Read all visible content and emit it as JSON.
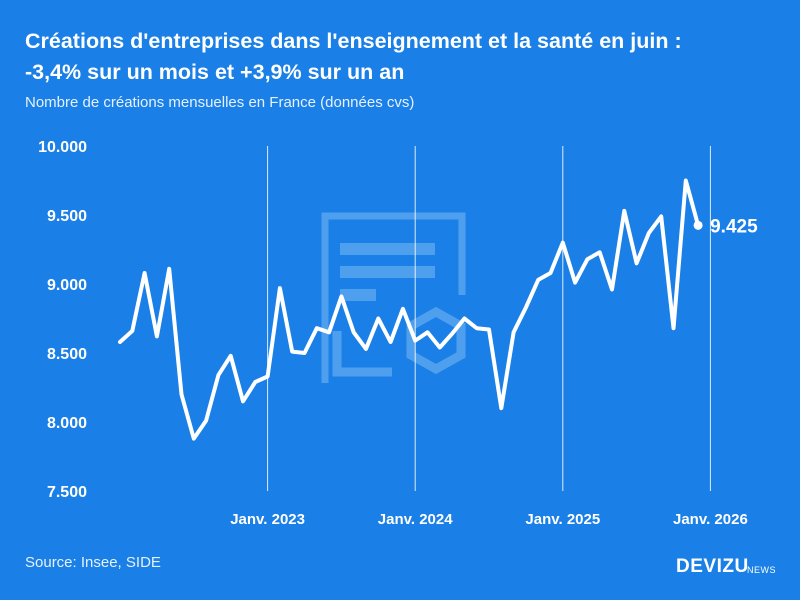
{
  "header": {
    "title_line1": "Créations d'entreprises dans l'enseignement et la santé en juin :",
    "title_line2": "-3,4% sur un mois et +3,9% sur un an",
    "subtitle": "Nombre de créations mensuelles en France (données cvs)"
  },
  "footer": {
    "source": "Source: Insee, SIDE",
    "brand": "DEVIZU",
    "brand_sub": "NEWS"
  },
  "colors": {
    "background": "#1a7fe6",
    "line": "#ffffff",
    "watermark": "#4ea0ee"
  },
  "chart_data": {
    "type": "line",
    "title": "Créations d'entreprises dans l'enseignement et la santé en juin : -3,4% sur un mois et +3,9% sur un an",
    "subtitle": "Nombre de créations mensuelles en France (données cvs)",
    "ylim": [
      7500,
      10000
    ],
    "yticks": [
      7500,
      8000,
      8500,
      9000,
      9500,
      10000
    ],
    "ytick_labels": [
      "7.500",
      "8.000",
      "8.500",
      "9.000",
      "9.500",
      "10.000"
    ],
    "xticks": [
      {
        "date": "2023-01",
        "label": "Janv. 2023"
      },
      {
        "date": "2024-01",
        "label": "Janv. 2024"
      },
      {
        "date": "2025-01",
        "label": "Janv. 2025"
      },
      {
        "date": "2026-01",
        "label": "Janv. 2026"
      }
    ],
    "grid": "vertical-at-january",
    "last_value_label": "9.425",
    "x": [
      "2022-01",
      "2022-02",
      "2022-03",
      "2022-04",
      "2022-05",
      "2022-06",
      "2022-07",
      "2022-08",
      "2022-09",
      "2022-10",
      "2022-11",
      "2022-12",
      "2023-01",
      "2023-02",
      "2023-03",
      "2023-04",
      "2023-05",
      "2023-06",
      "2023-07",
      "2023-08",
      "2023-09",
      "2023-10",
      "2023-11",
      "2023-12",
      "2024-01",
      "2024-02",
      "2024-03",
      "2024-04",
      "2024-05",
      "2024-06",
      "2024-07",
      "2024-08",
      "2024-09",
      "2024-10",
      "2024-11",
      "2024-12",
      "2025-01",
      "2025-02",
      "2025-03",
      "2025-04",
      "2025-05",
      "2025-06",
      "2025-07",
      "2025-08",
      "2025-09",
      "2025-10",
      "2025-11",
      "2025-12",
      "2026-01",
      "2026-02",
      "2026-03",
      "2026-04",
      "2026-05",
      "2026-06"
    ],
    "values": [
      8580,
      8660,
      9080,
      8620,
      9110,
      8200,
      7880,
      8010,
      8340,
      8480,
      8150,
      8290,
      8330,
      8970,
      8510,
      8500,
      8680,
      8650,
      8910,
      8650,
      8530,
      8750,
      8580,
      8820,
      8590,
      8650,
      8540,
      8640,
      8750,
      8680,
      8670,
      8100,
      8650,
      8830,
      9030,
      9080,
      9300,
      9010,
      9180,
      9230,
      8960,
      9530,
      9150,
      9370,
      9490,
      8680,
      9750,
      9425,
      null,
      null,
      null,
      null,
      null,
      null
    ]
  }
}
